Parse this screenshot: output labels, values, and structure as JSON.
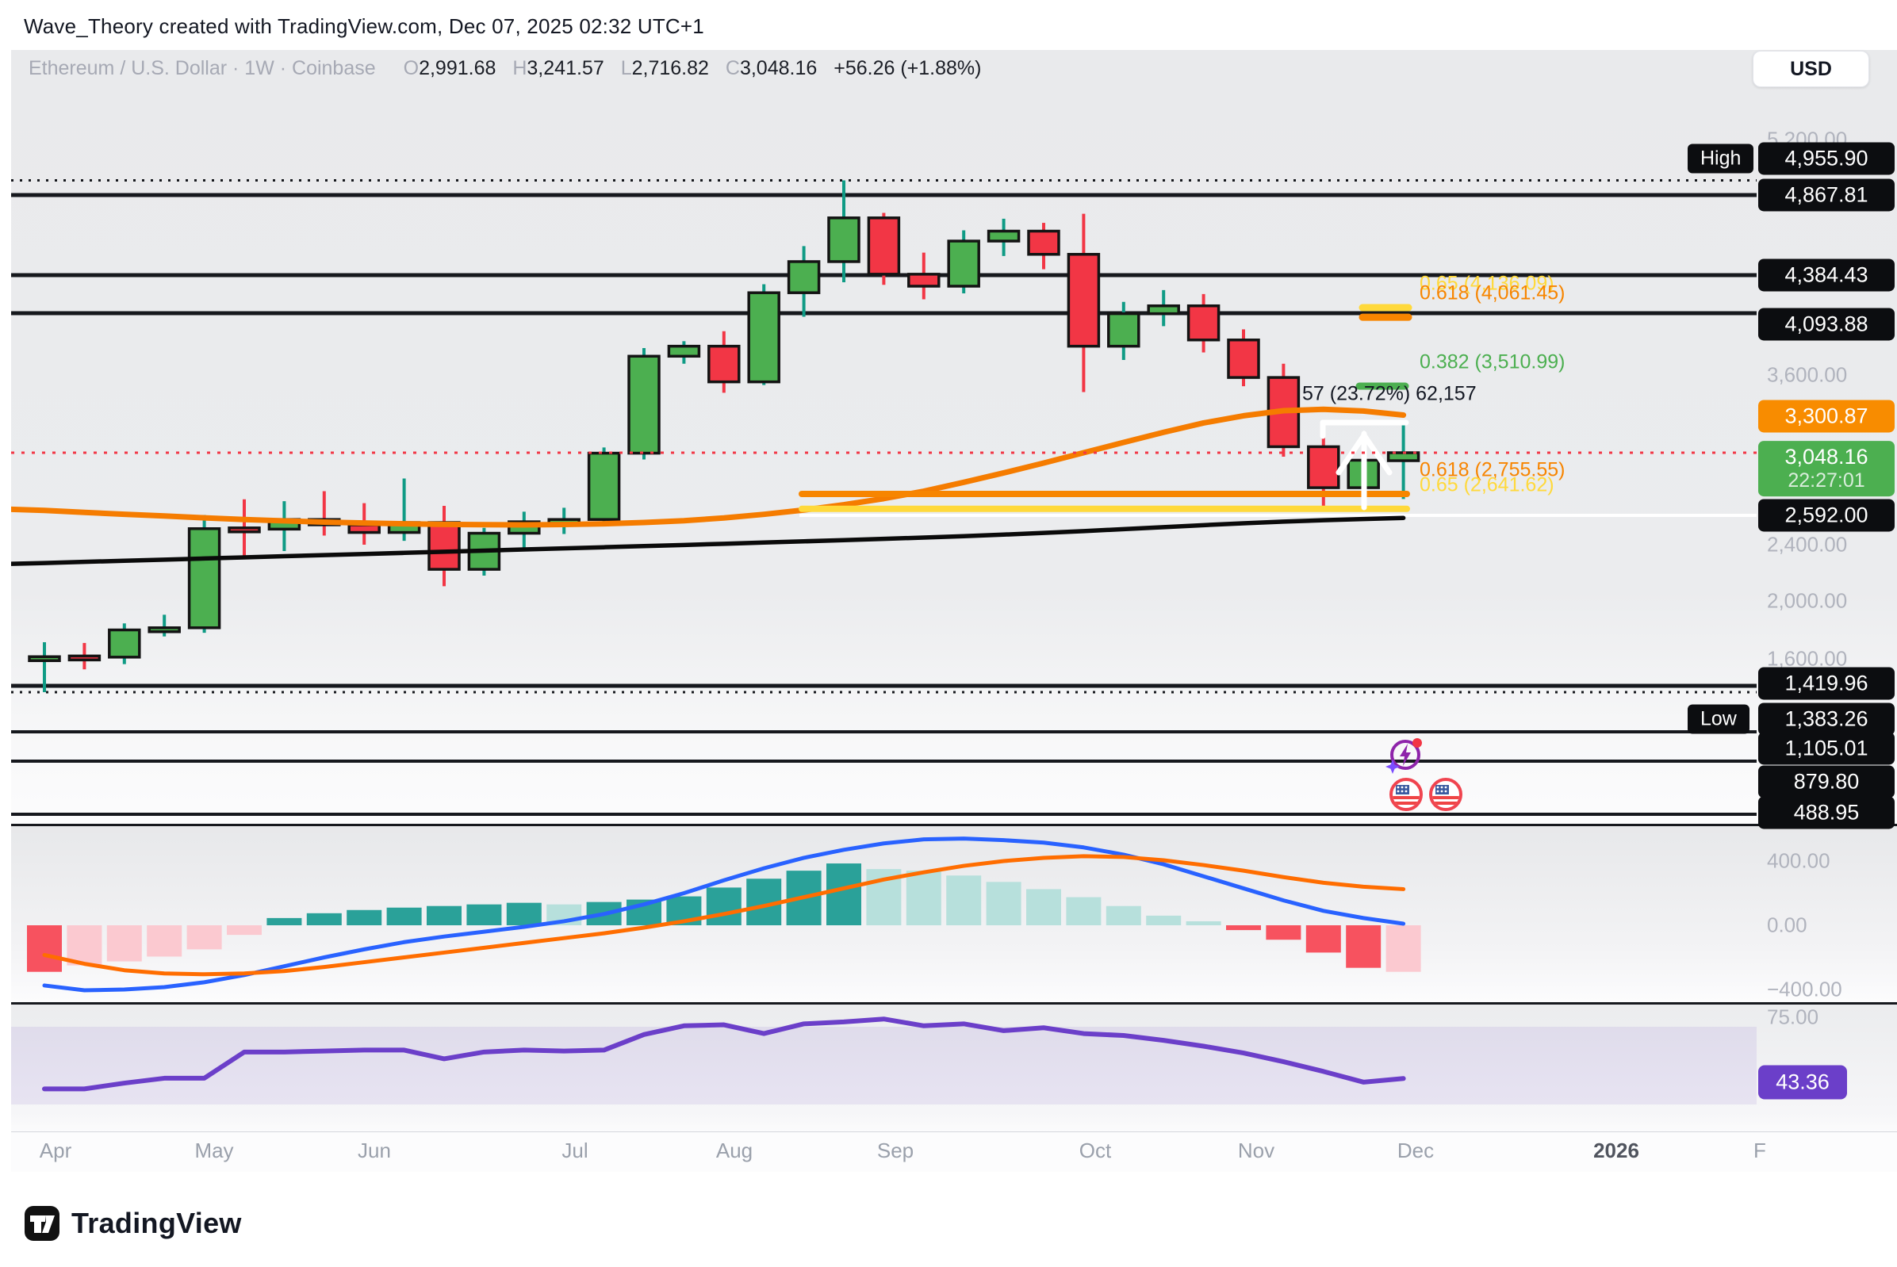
{
  "watermark": "Wave_Theory created with TradingView.com, Dec 07, 2025 02:32 UTC+1",
  "toolbar": {
    "currency": "USD"
  },
  "symbol_info": {
    "title": "Ethereum / U.S. Dollar · 1W · Coinbase",
    "o_label": "O",
    "o": "2,991.68",
    "h_label": "H",
    "h": "3,241.57",
    "l_label": "L",
    "l": "2,716.82",
    "c_label": "C",
    "c": "3,048.16",
    "change": "+56.26 (+1.88%)"
  },
  "footer": {
    "brand": "TradingView"
  },
  "axis": {
    "months": [
      "Apr",
      "May",
      "Jun",
      "Jul",
      "Aug",
      "Sep",
      "Oct",
      "Nov",
      "Dec",
      "2026",
      "F"
    ],
    "price_gray": [
      {
        "text": "5,200.00",
        "price": 5200
      },
      {
        "text": "3,600.00",
        "price": 3600
      },
      {
        "text": "2,400.00",
        "price": 2400
      },
      {
        "text": "2,000.00",
        "price": 2000
      },
      {
        "text": "1,600.00",
        "price": 1600
      }
    ],
    "macd_gray": [
      {
        "text": "400.00",
        "value": 400
      },
      {
        "text": "0.00",
        "value": 0
      },
      {
        "text": "−400.00",
        "value": -400
      }
    ],
    "rsi_gray": {
      "text": "75.00",
      "value": 75
    },
    "rsi_badge": {
      "text": "43.36",
      "value": 43.36
    }
  },
  "price_labels": [
    {
      "text": "4,955.90",
      "price": 4955.9,
      "type": "black",
      "badge": "High"
    },
    {
      "text": "4,867.81",
      "price": 4867.81,
      "type": "black"
    },
    {
      "text": "4,384.43",
      "price": 4384.43,
      "type": "black"
    },
    {
      "text": "4,093.88",
      "price": 4093.88,
      "type": "black"
    },
    {
      "text": "3,300.87",
      "price": 3300.87,
      "type": "orange"
    },
    {
      "text": "3,048.16",
      "price": 3048.16,
      "type": "green",
      "sub": "22:27:01"
    },
    {
      "text": "2,592.00",
      "price": 2592.0,
      "type": "black"
    },
    {
      "text": "1,419.96",
      "price": 1419.96,
      "type": "black"
    },
    {
      "text": "1,383.26",
      "price": 1383.26,
      "type": "black",
      "badge": "Low"
    },
    {
      "text": "1,105.01",
      "price": 1105.01,
      "type": "black"
    },
    {
      "text": "879.80",
      "price": 879.8,
      "type": "black"
    },
    {
      "text": "488.95",
      "price": 488.95,
      "type": "black"
    }
  ],
  "fib_labels": [
    {
      "text": "0.65 (4,136.09)",
      "price": 4136.09,
      "color": "#FFD93B",
      "x": 1790
    },
    {
      "text": "0.618 (4,061.45)",
      "price": 4061.45,
      "color": "#F78500",
      "x": 1790
    },
    {
      "text": "0.382 (3,510.99)",
      "price": 3510.99,
      "color": "#4CAF50",
      "x": 1790
    },
    {
      "text": "57 (23.72%) 62,157",
      "price": 3455,
      "color": "#131722",
      "x": 1642
    },
    {
      "text": "0.618 (2,755.55)",
      "price": 2755.55,
      "color": "#F78500",
      "x": 1790
    },
    {
      "text": "0.65 (2,641.62)",
      "price": 2641.62,
      "color": "#FFD93B",
      "x": 1790
    }
  ],
  "chart_data": [
    {
      "type": "candlestick",
      "title": "Ethereum / U.S. Dollar",
      "interval": "1W",
      "exchange": "Coinbase",
      "visible_high": 4955.9,
      "visible_low": 1383.26,
      "last_price": 3048.16,
      "ohlc": [
        [
          1610,
          1715,
          1383.26,
          1615
        ],
        [
          1620,
          1710,
          1530,
          1612
        ],
        [
          1612,
          1845,
          1565,
          1800
        ],
        [
          1800,
          1905,
          1755,
          1815
        ],
        [
          1815,
          2595,
          1780,
          2505
        ],
        [
          2510,
          2715,
          2310,
          2502
        ],
        [
          2502,
          2700,
          2355,
          2565
        ],
        [
          2565,
          2775,
          2460,
          2530
        ],
        [
          2530,
          2685,
          2400,
          2480
        ],
        [
          2480,
          2865,
          2425,
          2545
        ],
        [
          2545,
          2665,
          2105,
          2225
        ],
        [
          2225,
          2510,
          2180,
          2475
        ],
        [
          2475,
          2620,
          2360,
          2550
        ],
        [
          2550,
          2650,
          2470,
          2565
        ],
        [
          2565,
          3085,
          2520,
          3045
        ],
        [
          3045,
          3815,
          3000,
          3750
        ],
        [
          3750,
          3870,
          3690,
          3830
        ],
        [
          3830,
          3950,
          3465,
          3545
        ],
        [
          3545,
          4315,
          3520,
          4250
        ],
        [
          4250,
          4560,
          4065,
          4466
        ],
        [
          4466,
          4955.9,
          4330,
          4730
        ],
        [
          4730,
          4760,
          4310,
          4390
        ],
        [
          4390,
          4520,
          4200,
          4300
        ],
        [
          4300,
          4655,
          4245,
          4590
        ],
        [
          4590,
          4725,
          4500,
          4650
        ],
        [
          4650,
          4700,
          4420,
          4510
        ],
        [
          4510,
          4755,
          3470,
          3830
        ],
        [
          3830,
          4180,
          3720,
          4090
        ],
        [
          4090,
          4270,
          3990,
          4150
        ],
        [
          4150,
          4240,
          3780,
          3880
        ],
        [
          3880,
          3965,
          3510,
          3580
        ],
        [
          3580,
          3690,
          3020,
          3090
        ],
        [
          3090,
          3225,
          2620,
          2800
        ],
        [
          2800,
          3105,
          2745,
          2995
        ],
        [
          2991.68,
          3241.57,
          2716.82,
          3048.16
        ]
      ],
      "ma_orange": [
        2630,
        2615,
        2600,
        2588,
        2576,
        2565,
        2556,
        2548,
        2542,
        2537,
        2533,
        2531,
        2530,
        2532,
        2537,
        2545,
        2557,
        2575,
        2600,
        2633,
        2673,
        2720,
        2775,
        2838,
        2905,
        2975,
        3048,
        3120,
        3190,
        3255,
        3305,
        3340,
        3350,
        3338,
        3310
      ],
      "ma_black": [
        2270,
        2278,
        2286,
        2294,
        2302,
        2310,
        2318,
        2326,
        2334,
        2342,
        2350,
        2358,
        2366,
        2374,
        2382,
        2390,
        2398,
        2406,
        2414,
        2422,
        2430,
        2438,
        2447,
        2456,
        2466,
        2477,
        2489,
        2502,
        2515,
        2528,
        2540,
        2551,
        2560,
        2568,
        2575
      ],
      "hlines": [
        {
          "price": 4955.9,
          "style": "dotted",
          "color": "#16181d",
          "w": 3
        },
        {
          "price": 4867.81,
          "style": "solid",
          "color": "#16181d",
          "w": 5
        },
        {
          "price": 4384.43,
          "style": "solid",
          "color": "#16181d",
          "w": 5
        },
        {
          "price": 4093.88,
          "style": "solid",
          "color": "#16181d",
          "w": 5
        },
        {
          "price": 2592.0,
          "style": "solid",
          "color": "#ffffff",
          "w": 4,
          "x1": 1008
        },
        {
          "price": 1419.96,
          "style": "solid",
          "color": "#16181d",
          "w": 5
        },
        {
          "price": 1383.26,
          "style": "dotted",
          "color": "#16181d",
          "w": 3
        },
        {
          "price": 1105.01,
          "style": "solid",
          "color": "#16181d",
          "w": 4
        },
        {
          "price": 879.8,
          "style": "solid",
          "color": "#16181d",
          "w": 4
        },
        {
          "price": 488.95,
          "style": "solid",
          "color": "#16181d",
          "w": 4
        },
        {
          "price": 3048.16,
          "style": "dotted",
          "color": "#f23645",
          "w": 3,
          "kind": "last"
        }
      ],
      "fib_levels": [
        {
          "price": 4136.09,
          "color": "#FFD93B",
          "x1": 1718,
          "x2": 1776,
          "w": 9
        },
        {
          "price": 4061.45,
          "color": "#F78500",
          "x1": 1718,
          "x2": 1776,
          "w": 9
        },
        {
          "price": 3510.99,
          "color": "#4CAF50",
          "x1": 1714,
          "x2": 1772,
          "w": 9
        },
        {
          "price": 2755.55,
          "color": "#F78500",
          "x1": 1011,
          "x2": 1774,
          "w": 8
        },
        {
          "price": 2641.62,
          "color": "#FFD93B",
          "x1": 1011,
          "x2": 1774,
          "w": 8
        }
      ]
    },
    {
      "type": "bar",
      "name": "MACD",
      "ylim": [
        -480,
        620
      ],
      "yticks": [
        400,
        0,
        -400
      ],
      "hist": [
        -290,
        -250,
        -225,
        -195,
        -150,
        -60,
        45,
        75,
        95,
        110,
        120,
        130,
        140,
        130,
        145,
        160,
        180,
        235,
        290,
        340,
        385,
        350,
        340,
        310,
        270,
        225,
        175,
        120,
        60,
        25,
        -30,
        -90,
        -170,
        -265,
        -290
      ],
      "hist_kind": [
        "R",
        "P",
        "P",
        "P",
        "P",
        "P",
        "T",
        "T",
        "T",
        "T",
        "T",
        "T",
        "T",
        "L",
        "T",
        "T",
        "T",
        "T",
        "T",
        "T",
        "T",
        "L",
        "L",
        "L",
        "L",
        "L",
        "L",
        "L",
        "L",
        "L",
        "R",
        "R",
        "R",
        "R",
        "P"
      ],
      "macd_line": [
        -375,
        -405,
        -400,
        -385,
        -355,
        -310,
        -255,
        -200,
        -150,
        -105,
        -70,
        -40,
        -10,
        25,
        70,
        130,
        200,
        280,
        355,
        420,
        470,
        510,
        535,
        540,
        530,
        515,
        485,
        440,
        380,
        305,
        230,
        155,
        90,
        45,
        10
      ],
      "signal_line": [
        -185,
        -240,
        -280,
        -300,
        -305,
        -300,
        -285,
        -260,
        -230,
        -200,
        -170,
        -140,
        -110,
        -80,
        -50,
        -15,
        25,
        70,
        120,
        175,
        230,
        285,
        330,
        370,
        400,
        420,
        430,
        425,
        405,
        375,
        340,
        300,
        265,
        240,
        225
      ]
    },
    {
      "type": "line",
      "name": "RSI",
      "band": [
        30,
        70
      ],
      "ytick": 75,
      "last": 43.36,
      "values": [
        38,
        38,
        41,
        43.5,
        43.5,
        57,
        57,
        57.5,
        58,
        58,
        53.5,
        57,
        58,
        57.5,
        58,
        66,
        70.5,
        71,
        66.5,
        71.5,
        72.5,
        74,
        70.5,
        71.5,
        68,
        69.5,
        66.5,
        65.5,
        63,
        60,
        56.5,
        52,
        47,
        41.5,
        43.36
      ]
    }
  ]
}
